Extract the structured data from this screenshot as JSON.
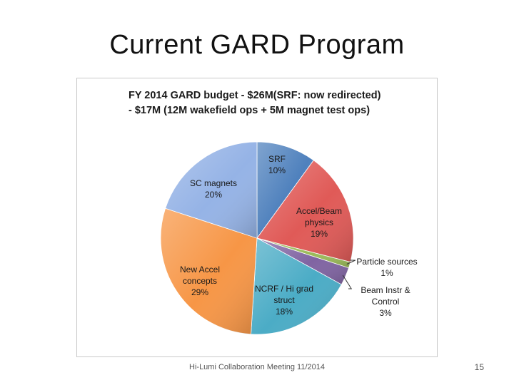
{
  "slide": {
    "title": "Current GARD Program",
    "footer": "Hi-Lumi Collaboration Meeting 11/2014",
    "page_number": "15"
  },
  "chart_data": {
    "type": "pie",
    "title_lines": [
      "FY 2014 GARD budget - $26M(SRF: now redirected)",
      "- $17M (12M wakefield ops + 5M magnet test ops)"
    ],
    "slices": [
      {
        "name": "SRF",
        "value": 10,
        "label": "10%",
        "color": "#4f81bd"
      },
      {
        "name": "Accel/Beam physics",
        "value": 19,
        "label": "19%",
        "color": "#e05a57"
      },
      {
        "name": "Particle sources",
        "value": 1,
        "label": "1%",
        "color": "#9bbb59"
      },
      {
        "name": "Beam Instr & Control",
        "value": 3,
        "label": "3%",
        "color": "#8064a2"
      },
      {
        "name": "NCRF / Hi grad struct",
        "value": 18,
        "label": "18%",
        "color": "#4bacc6"
      },
      {
        "name": "New Accel concepts",
        "value": 29,
        "label": "29%",
        "color": "#f79646"
      },
      {
        "name": "SC magnets",
        "value": 20,
        "label": "20%",
        "color": "#95b3e6"
      }
    ],
    "labels": [
      {
        "lines": [
          "SRF",
          "10%"
        ]
      },
      {
        "lines": [
          "Accel/Beam",
          "physics",
          "19%"
        ]
      },
      {
        "lines": [
          "Particle sources",
          "1%"
        ]
      },
      {
        "lines": [
          "Beam Instr &",
          "Control",
          "3%"
        ]
      },
      {
        "lines": [
          "NCRF / Hi grad",
          "struct",
          "18%"
        ]
      },
      {
        "lines": [
          "New Accel",
          "concepts",
          "29%"
        ]
      },
      {
        "lines": [
          "SC magnets",
          "20%"
        ]
      }
    ]
  }
}
